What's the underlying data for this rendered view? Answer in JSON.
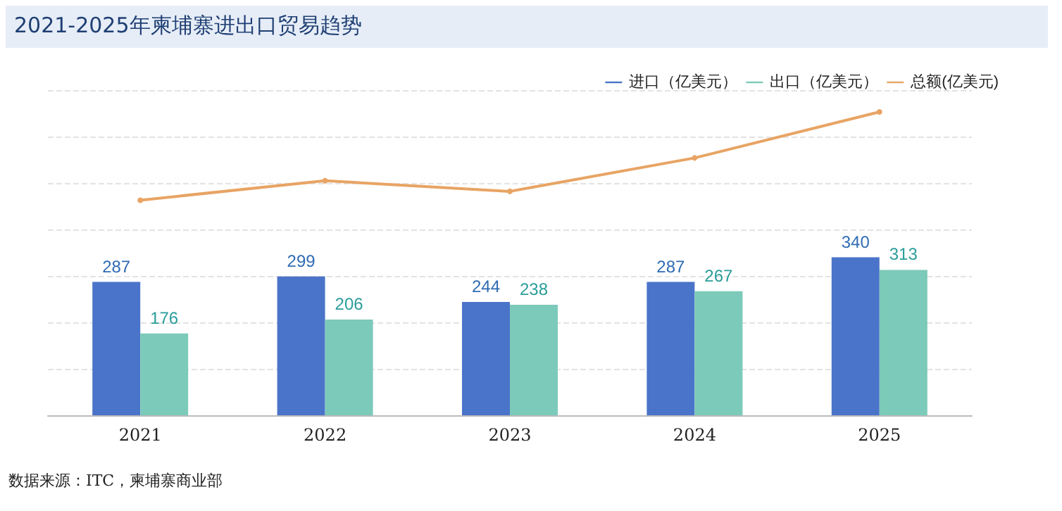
{
  "chart_data": {
    "type": "bar",
    "title": "2021-2025年柬埔寨进出口贸易趋势",
    "categories": [
      "2021",
      "2022",
      "2023",
      "2024",
      "2025"
    ],
    "series": [
      {
        "name": "进口（亿美元）",
        "color": "#4a74c9",
        "values": [
          287,
          299,
          244,
          287,
          340
        ],
        "value_labels": [
          "287",
          "299",
          "244",
          "287",
          "340"
        ]
      },
      {
        "name": "出口（亿美元）",
        "color": "#7ccab9",
        "values": [
          176,
          206,
          238,
          267,
          313
        ],
        "value_labels": [
          "176",
          "206",
          "238",
          "267",
          "313"
        ]
      },
      {
        "name": "总额(亿美元)",
        "type": "line",
        "color": "#e8a464",
        "values": [
          463,
          505,
          482,
          554,
          653
        ],
        "marker": "circle"
      }
    ],
    "ylim": [
      0,
      700
    ],
    "yticks": [
      {
        "value": 0,
        "label": null
      },
      {
        "value": 100,
        "label": null
      },
      {
        "value": 200,
        "label": null
      },
      {
        "value": 300,
        "label": null
      },
      {
        "value": 400,
        "label": null
      },
      {
        "value": 500,
        "label": null
      },
      {
        "value": 600,
        "label": null
      },
      {
        "value": 700,
        "label": null
      }
    ],
    "tick_labels": "x",
    "grid": "y",
    "legend": "top right",
    "annotations": [
      "数据来源：ITC，柬埔寨商业部"
    ]
  }
}
